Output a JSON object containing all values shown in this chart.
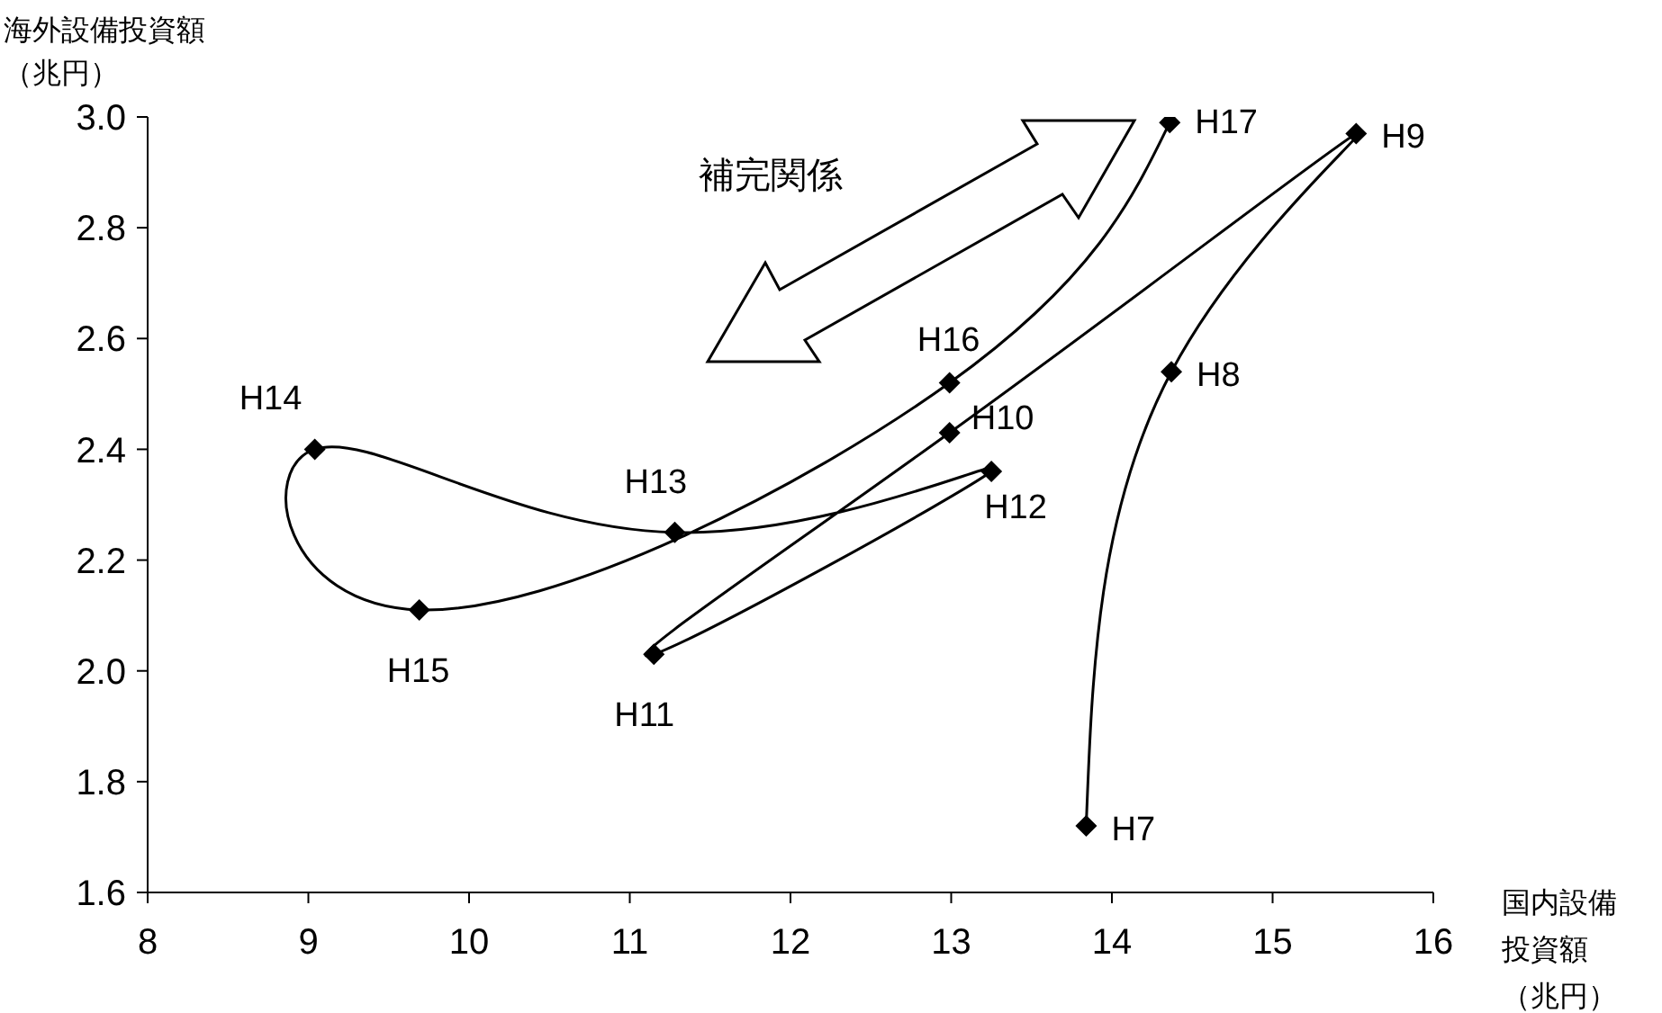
{
  "chart_data": {
    "type": "line",
    "x": [
      13.84,
      14.37,
      15.52,
      12.99,
      11.15,
      13.25,
      11.28,
      9.04,
      9.69,
      12.99,
      14.36
    ],
    "values": [
      1.72,
      2.54,
      2.97,
      2.43,
      2.03,
      2.36,
      2.25,
      2.4,
      2.11,
      2.52,
      2.99
    ],
    "color": "#000000",
    "marker": "diamond",
    "grid": false,
    "xlabel": "国内設備投資額（兆円）",
    "ylabel": "海外設備投資額（兆円）",
    "xlim": [
      8,
      16
    ],
    "xticks": [
      8,
      9,
      10,
      11,
      12,
      13,
      14,
      15,
      16
    ],
    "ylim": [
      1.6,
      3.0
    ],
    "yticks": [
      {
        "value": 1.6,
        "label": "1.6"
      },
      1.8,
      {
        "value": 2.0,
        "label": "2.0"
      },
      2.2,
      2.4,
      2.6,
      2.8,
      {
        "value": 3.0,
        "label": "3.0"
      }
    ],
    "annotations": [
      {
        "text": "H7",
        "x": 13.84,
        "y": 1.72
      },
      {
        "text": "H8",
        "x": 14.37,
        "y": 2.54
      },
      {
        "text": "H9",
        "x": 15.52,
        "y": 2.97
      },
      {
        "text": "H10",
        "x": 12.99,
        "y": 2.43
      },
      {
        "text": "H11",
        "x": 11.15,
        "y": 2.03
      },
      {
        "text": "H12",
        "x": 13.25,
        "y": 2.36
      },
      {
        "text": "H13",
        "x": 11.28,
        "y": 2.25
      },
      {
        "text": "H14",
        "x": 9.04,
        "y": 2.4
      },
      {
        "text": "H15",
        "x": 9.69,
        "y": 2.11
      },
      {
        "text": "H16",
        "x": 12.99,
        "y": 2.52
      },
      {
        "text": "H17",
        "x": 14.36,
        "y": 2.99
      },
      "補完関係"
    ]
  }
}
